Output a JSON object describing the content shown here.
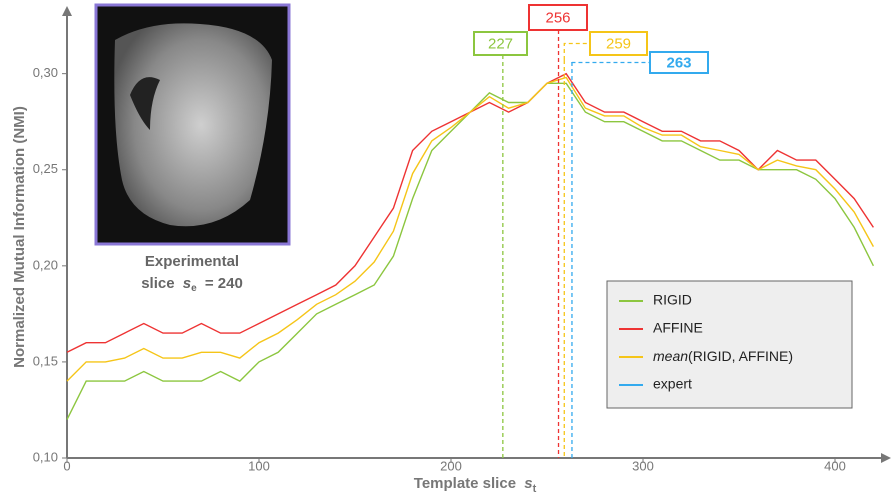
{
  "chart_data": {
    "type": "line",
    "xlabel": [
      "Template slice",
      "s",
      "t"
    ],
    "ylabel": "Normalized Mutual Information (NMI)",
    "x": [
      0,
      10,
      20,
      30,
      40,
      50,
      60,
      70,
      80,
      90,
      100,
      110,
      120,
      130,
      140,
      150,
      160,
      170,
      180,
      190,
      200,
      210,
      220,
      230,
      240,
      250,
      260,
      270,
      280,
      290,
      300,
      310,
      320,
      330,
      340,
      350,
      360,
      370,
      380,
      390,
      400,
      410,
      420
    ],
    "series": [
      {
        "name": "RIGID",
        "color": "#8cc63f",
        "values": [
          0.12,
          0.14,
          0.14,
          0.14,
          0.145,
          0.14,
          0.14,
          0.14,
          0.145,
          0.14,
          0.15,
          0.155,
          0.165,
          0.175,
          0.18,
          0.185,
          0.19,
          0.205,
          0.235,
          0.26,
          0.27,
          0.28,
          0.29,
          0.285,
          0.285,
          0.295,
          0.295,
          0.28,
          0.275,
          0.275,
          0.27,
          0.265,
          0.265,
          0.26,
          0.255,
          0.255,
          0.25,
          0.25,
          0.25,
          0.245,
          0.235,
          0.22,
          0.2
        ]
      },
      {
        "name": "AFFINE",
        "color": "#ee3333",
        "values": [
          0.155,
          0.16,
          0.16,
          0.165,
          0.17,
          0.165,
          0.165,
          0.17,
          0.165,
          0.165,
          0.17,
          0.175,
          0.18,
          0.185,
          0.19,
          0.2,
          0.215,
          0.23,
          0.26,
          0.27,
          0.275,
          0.28,
          0.285,
          0.28,
          0.285,
          0.295,
          0.3,
          0.285,
          0.28,
          0.28,
          0.275,
          0.27,
          0.27,
          0.265,
          0.265,
          0.26,
          0.25,
          0.26,
          0.255,
          0.255,
          0.245,
          0.235,
          0.22
        ]
      },
      {
        "name": "mean(RIGID, AFFINE)",
        "name_parts": [
          "mean",
          "(RIGID, AFFINE)"
        ],
        "color": "#f5c518",
        "values": [
          0.14,
          0.15,
          0.15,
          0.152,
          0.157,
          0.152,
          0.152,
          0.155,
          0.155,
          0.152,
          0.16,
          0.165,
          0.172,
          0.18,
          0.185,
          0.192,
          0.202,
          0.218,
          0.248,
          0.265,
          0.272,
          0.28,
          0.288,
          0.282,
          0.285,
          0.295,
          0.298,
          0.282,
          0.278,
          0.278,
          0.272,
          0.268,
          0.268,
          0.262,
          0.26,
          0.258,
          0.25,
          0.255,
          0.252,
          0.25,
          0.24,
          0.228,
          0.21
        ]
      }
    ],
    "vlines": [
      {
        "x": 227,
        "color": "#8cc63f"
      },
      {
        "x": 256,
        "color": "#ee3333"
      },
      {
        "x": 259,
        "color": "#f5c518"
      },
      {
        "x": 263,
        "color": "#33aaee",
        "name": "expert"
      }
    ],
    "inset": {
      "line1": "Experimental",
      "line2": [
        "slice",
        "s",
        "e",
        "= 240"
      ],
      "color": "#8a77d6"
    },
    "xlim": [
      0,
      425
    ],
    "ylim": [
      0.1,
      0.33
    ],
    "xticks": [
      0,
      100,
      200,
      300,
      400
    ],
    "yticks": [
      {
        "value": 0.1,
        "label": "0,10"
      },
      {
        "value": 0.15,
        "label": "0,15"
      },
      {
        "value": 0.2,
        "label": "0,20"
      },
      {
        "value": 0.25,
        "label": "0,25"
      },
      {
        "value": 0.3,
        "label": "0,30"
      }
    ],
    "legend": "lower-right"
  }
}
